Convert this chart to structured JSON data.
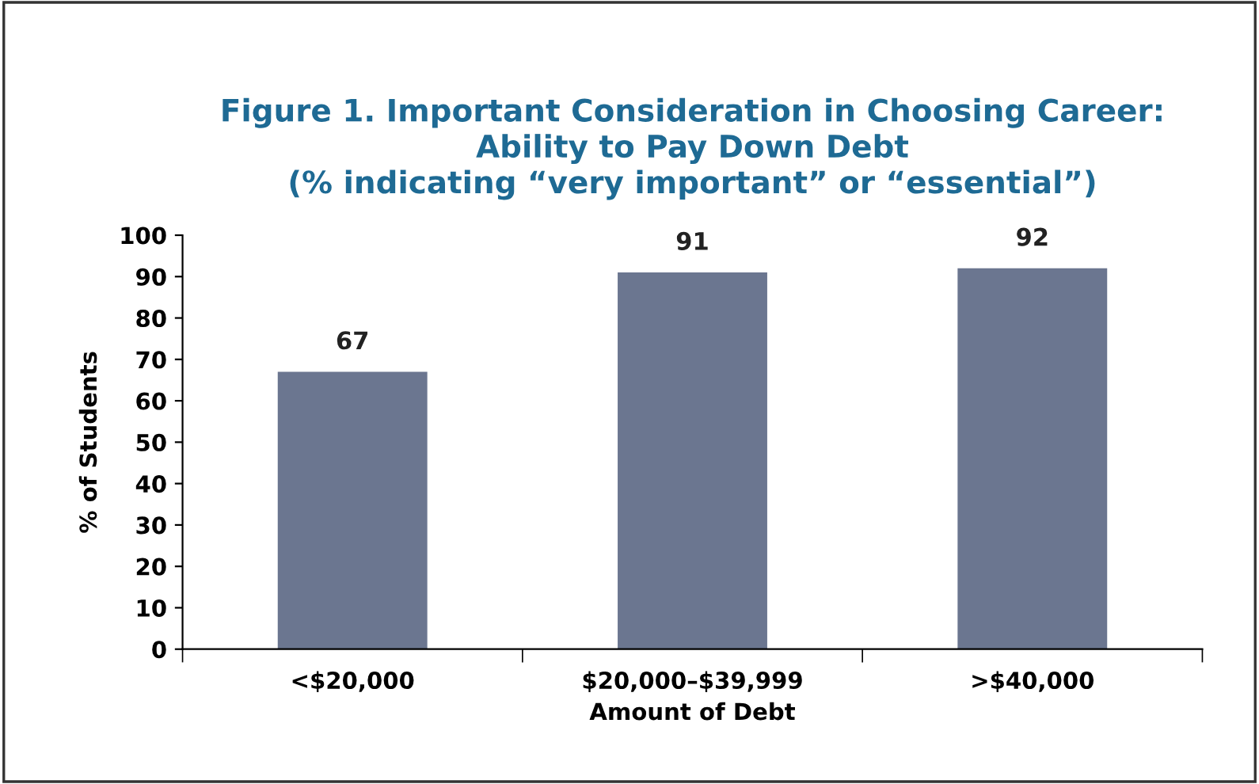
{
  "chart_data": {
    "type": "bar",
    "title": "Figure 1. Important Consideration in Choosing Career:\nAbility to Pay Down Debt\n(% indicating “very important” or “essential”)",
    "xlabel": "Amount of Debt",
    "ylabel": "% of Students",
    "categories": [
      "<$20,000",
      "$20,000–$39,999",
      ">$40,000"
    ],
    "values": [
      67,
      91,
      92
    ],
    "color": "#6b7690",
    "ylim": [
      0,
      100
    ],
    "yticks": [
      0,
      10,
      20,
      30,
      40,
      50,
      60,
      70,
      80,
      90,
      100
    ],
    "data_labels": true,
    "grid": false,
    "legend": false
  }
}
